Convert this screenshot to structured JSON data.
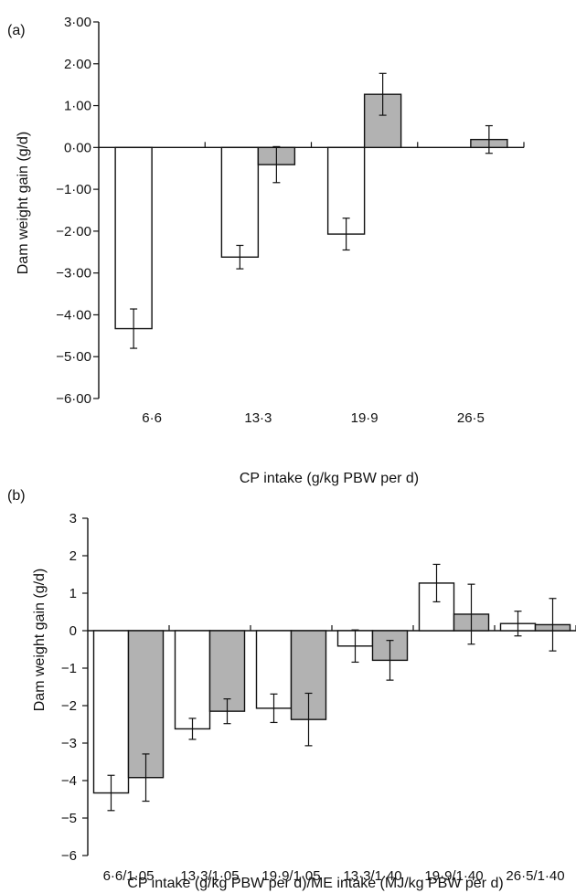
{
  "chart_data": [
    {
      "panel_label": "(a)",
      "type": "bar",
      "categories": [
        "6·6",
        "13·3",
        "19·9",
        "26·5"
      ],
      "series": [
        {
          "values": [
            -4.33,
            -2.62,
            -2.07,
            null
          ],
          "errors": [
            0.47,
            0.28,
            0.38,
            null
          ],
          "color": "#ffffff"
        },
        {
          "values": [
            null,
            -0.41,
            1.27,
            0.19
          ],
          "errors": [
            null,
            0.43,
            0.5,
            0.33
          ],
          "color": "#b2b2b2"
        }
      ],
      "xlabel": "CP intake (g/kg PBW per d)",
      "ylabel": "Dam weight gain (g/d)",
      "ylim": [
        -6,
        3
      ],
      "yticks": [
        3,
        2,
        1,
        0,
        -1,
        -2,
        -3,
        -4,
        -5,
        -6
      ],
      "ytick_labels": [
        "3·00",
        "2·00",
        "1·00",
        "0·00",
        "−1·00",
        "−2·00",
        "−3·00",
        "−4·00",
        "−5·00",
        "−6·00"
      ]
    },
    {
      "panel_label": "(b)",
      "type": "bar",
      "categories": [
        "6·6/1·05",
        "13·3/1·05",
        "19·9/1·05",
        "13·3/1·40",
        "19·9/1·40",
        "26·5/1·40"
      ],
      "series": [
        {
          "values": [
            -4.33,
            -2.62,
            -2.07,
            -0.41,
            1.27,
            0.19
          ],
          "errors": [
            0.47,
            0.28,
            0.38,
            0.43,
            0.5,
            0.33
          ],
          "color": "#ffffff"
        },
        {
          "values": [
            -3.92,
            -2.15,
            -2.37,
            -0.79,
            0.44,
            0.16
          ],
          "errors": [
            0.63,
            0.33,
            0.7,
            0.53,
            0.8,
            0.7
          ],
          "color": "#b2b2b2"
        }
      ],
      "xlabel": "CP intake (g/kg PBW per d)/ME intake (MJ/kg PBW per d)",
      "ylabel": "Dam weight gain (g/d)",
      "ylim": [
        -6,
        3
      ],
      "yticks": [
        3,
        2,
        1,
        0,
        -1,
        -2,
        -3,
        -4,
        -5,
        -6
      ],
      "ytick_labels": [
        "3",
        "2",
        "1",
        "0",
        "−1",
        "−2",
        "−3",
        "−4",
        "−5",
        "−6"
      ]
    }
  ]
}
